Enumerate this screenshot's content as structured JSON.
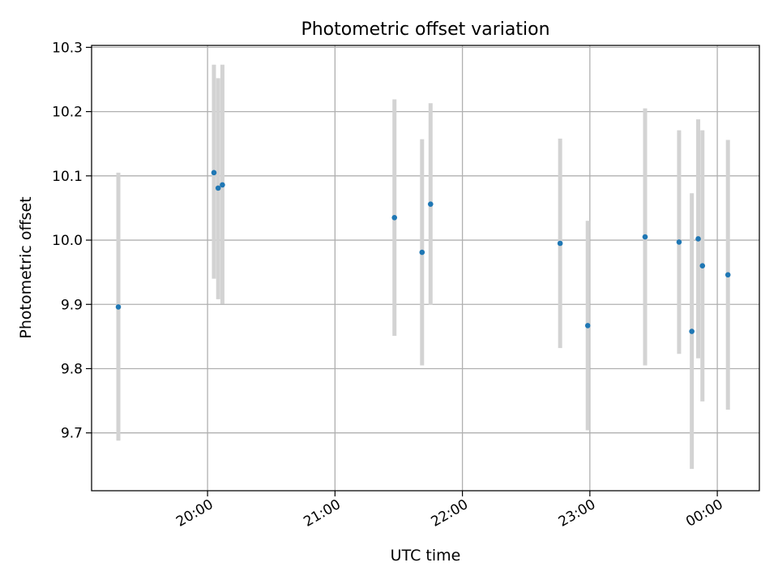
{
  "chart_data": {
    "type": "scatter",
    "title": "Photometric offset variation",
    "xlabel": "UTC time",
    "ylabel": "Photometric offset",
    "x_ticks": [
      "20:00",
      "21:00",
      "22:00",
      "23:00",
      "00:00"
    ],
    "x_tick_hours": [
      20,
      21,
      22,
      23,
      24
    ],
    "x_range_hours": [
      19.09,
      24.33
    ],
    "y_ticks": [
      "9.7",
      "9.8",
      "9.9",
      "10.0",
      "10.1",
      "10.2",
      "10.3"
    ],
    "y_tick_values": [
      9.7,
      9.8,
      9.9,
      10.0,
      10.1,
      10.2,
      10.3
    ],
    "ylim": [
      9.61,
      10.303
    ],
    "grid": true,
    "point_color": "#1f77b4",
    "errorbar_color": "#d3d3d3",
    "points": [
      {
        "time": "19:18",
        "y": 9.896,
        "ylo": 9.688,
        "yhi": 10.105
      },
      {
        "time": "20:03",
        "y": 10.105,
        "ylo": 9.94,
        "yhi": 10.273
      },
      {
        "time": "20:05",
        "y": 10.081,
        "ylo": 9.908,
        "yhi": 10.252
      },
      {
        "time": "20:07",
        "y": 10.086,
        "ylo": 9.901,
        "yhi": 10.273
      },
      {
        "time": "21:28",
        "y": 10.035,
        "ylo": 9.851,
        "yhi": 10.219
      },
      {
        "time": "21:41",
        "y": 9.981,
        "ylo": 9.805,
        "yhi": 10.157
      },
      {
        "time": "21:45",
        "y": 10.056,
        "ylo": 9.899,
        "yhi": 10.213
      },
      {
        "time": "22:46",
        "y": 9.995,
        "ylo": 9.832,
        "yhi": 10.158
      },
      {
        "time": "22:59",
        "y": 9.867,
        "ylo": 9.704,
        "yhi": 10.03
      },
      {
        "time": "23:26",
        "y": 10.005,
        "ylo": 9.805,
        "yhi": 10.205
      },
      {
        "time": "23:42",
        "y": 9.997,
        "ylo": 9.823,
        "yhi": 10.171
      },
      {
        "time": "23:48",
        "y": 9.858,
        "ylo": 9.644,
        "yhi": 10.073
      },
      {
        "time": "23:51",
        "y": 10.002,
        "ylo": 9.816,
        "yhi": 10.188
      },
      {
        "time": "23:53",
        "y": 9.96,
        "ylo": 9.749,
        "yhi": 10.171
      },
      {
        "time": "00:05",
        "y": 9.946,
        "ylo": 9.736,
        "yhi": 10.156
      }
    ]
  }
}
